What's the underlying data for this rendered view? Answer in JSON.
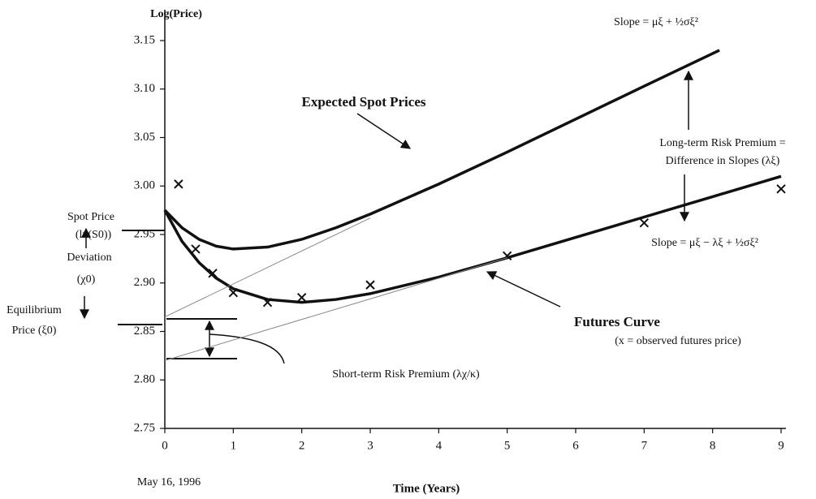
{
  "chart_data": {
    "type": "line",
    "ylabel": "Log(Price)",
    "xlabel": "Time (Years)",
    "date_label": "May 16, 1996",
    "xlim": [
      0,
      9
    ],
    "xticks": [
      0,
      1,
      2,
      3,
      4,
      5,
      6,
      7,
      8,
      9
    ],
    "ylim": [
      2.75,
      3.15
    ],
    "yticks": [
      2.75,
      {
        "value": 2.8,
        "label": "2.80"
      },
      2.85,
      {
        "value": 2.9,
        "label": "2.90"
      },
      2.95,
      {
        "value": 3.0,
        "label": "3.00"
      },
      3.05,
      {
        "value": 3.1,
        "label": "3.10"
      },
      3.15
    ],
    "series": [
      {
        "name": "Expected Spot Prices",
        "color": "#111111",
        "width": 3.5,
        "x": [
          0,
          0.25,
          0.5,
          0.75,
          1,
          1.5,
          2,
          2.5,
          3,
          4,
          5,
          6,
          7,
          8.1
        ],
        "values": [
          2.975,
          2.957,
          2.945,
          2.938,
          2.935,
          2.937,
          2.945,
          2.957,
          2.971,
          3.002,
          3.035,
          3.069,
          3.103,
          3.14
        ]
      },
      {
        "name": "Futures Curve",
        "color": "#111111",
        "width": 3.5,
        "x": [
          0,
          0.25,
          0.5,
          0.75,
          1,
          1.5,
          2,
          2.5,
          3,
          4,
          5,
          6,
          7,
          8,
          9
        ],
        "values": [
          2.975,
          2.943,
          2.921,
          2.905,
          2.894,
          2.883,
          2.88,
          2.883,
          2.889,
          2.906,
          2.926,
          2.947,
          2.968,
          2.989,
          3.01
        ]
      },
      {
        "name": "(x = observed futures price)",
        "color": "#111111",
        "marker": "x",
        "x": [
          0.2,
          0.45,
          0.7,
          1,
          1.5,
          2,
          3,
          5,
          7,
          9
        ],
        "values": [
          3.002,
          2.935,
          2.91,
          2.89,
          2.88,
          2.885,
          2.898,
          2.928,
          2.962,
          2.997
        ]
      },
      {
        "color": "#888888",
        "width": 1,
        "x": [
          0,
          3
        ],
        "values": [
          2.865,
          2.967
        ]
      },
      {
        "color": "#888888",
        "width": 1,
        "x": [
          0,
          5
        ],
        "values": [
          2.82,
          2.926
        ]
      }
    ],
    "annotations": [
      "Slope = μξ + ½σξ²",
      "Long-term Risk Premium =",
      "Difference in Slopes (λξ)",
      "Spot Price",
      "(ln(S0))",
      "Deviation",
      "(χ0)",
      "Equilibrium",
      "Price (ξ0)",
      "Slope = μξ − λξ + ½σξ²",
      "Short-term Risk Premium (λχ/κ)"
    ]
  }
}
